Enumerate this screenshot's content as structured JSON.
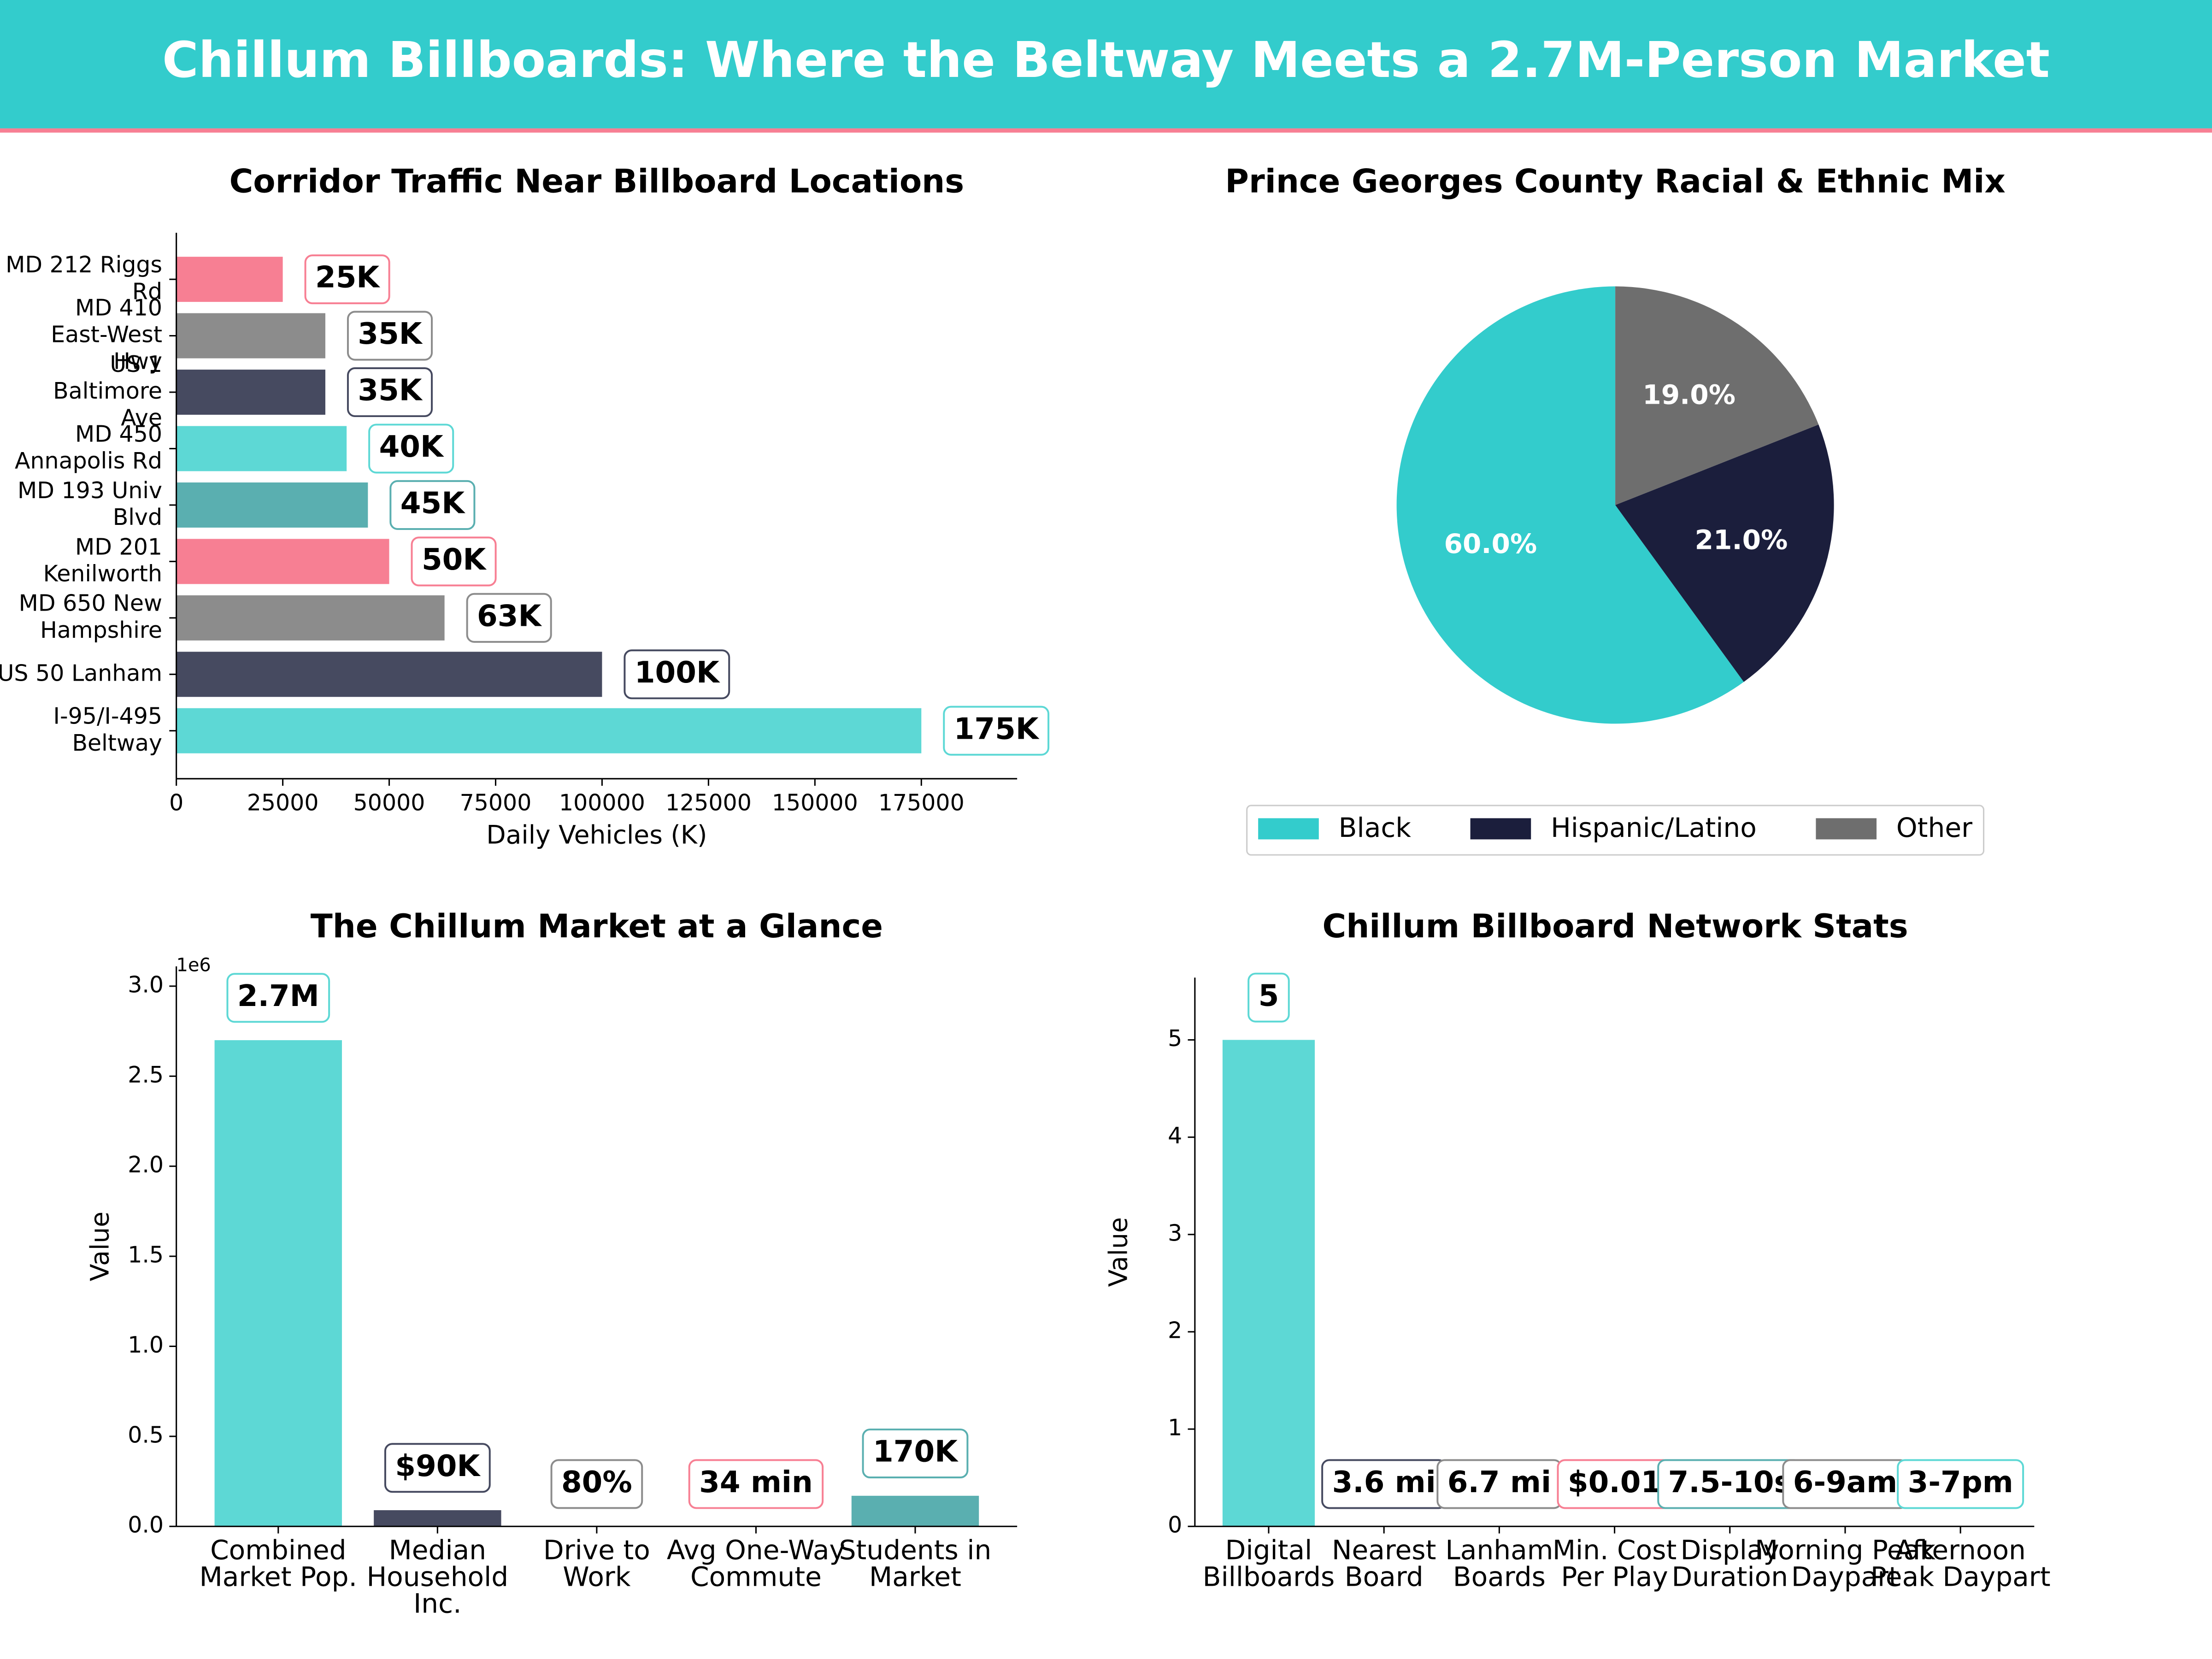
{
  "title": "Chillum Billboards: Where the Beltway Meets a 2.7M-Person Market",
  "chart_data": [
    {
      "type": "barh",
      "title": "Corridor Traffic Near Billboard Locations",
      "categories": [
        "I-95/I-495 Beltway",
        "US 50 Lanham",
        "MD 650 New Hampshire",
        "MD 201 Kenilworth",
        "MD 193 Univ Blvd",
        "MD 450 Annapolis Rd",
        "US 1 Baltimore Ave",
        "MD 410 East-West Hwy",
        "MD 212 Riggs Rd"
      ],
      "values": [
        175000,
        100000,
        63000,
        50000,
        45000,
        40000,
        35000,
        35000,
        25000
      ],
      "value_labels": [
        "175K",
        "100K",
        "63K",
        "50K",
        "45K",
        "40K",
        "35K",
        "35K",
        "25K"
      ],
      "colors": [
        "#5dd8d5",
        "#464a60",
        "#8c8c8c",
        "#f77f93",
        "#5aafb0",
        "#5dd8d5",
        "#464a60",
        "#8c8c8c",
        "#f77f93"
      ],
      "xlabel": "Daily Vehicles (K)",
      "xlim": [
        0,
        197500
      ],
      "xticks": [
        0,
        25000,
        50000,
        75000,
        100000,
        125000,
        150000,
        175000
      ]
    },
    {
      "type": "pie",
      "title": "Prince Georges County Racial & Ethnic Mix",
      "categories": [
        "Black",
        "Hispanic/Latino",
        "Other"
      ],
      "values": [
        60,
        21,
        19
      ],
      "value_labels": [
        "60.0%",
        "21.0%",
        "19.0%"
      ],
      "colors": [
        "#33cccc",
        "#1b1e3c",
        "#6e6e6e"
      ],
      "legend": "lower center"
    },
    {
      "type": "bar",
      "title": "The Chillum Market at a Glance",
      "categories": [
        "Combined Market Pop.",
        "Median Household Inc.",
        "Drive to Work",
        "Avg One-Way Commute",
        "Students in Market"
      ],
      "values": [
        2700000,
        90000,
        80,
        34,
        170000
      ],
      "value_labels": [
        "2.7M",
        "$90K",
        "80%",
        "34 min",
        "170K"
      ],
      "colors": [
        "#5dd8d5",
        "#464a60",
        "#8c8c8c",
        "#f77f93",
        "#5aafb0"
      ],
      "ylabel": "Value",
      "y_offset_label": "1e6",
      "ylim": [
        0,
        3110000
      ],
      "yticks": [
        {
          "value": 0,
          "label": "0.0"
        },
        {
          "value": 500000,
          "label": "0.5"
        },
        {
          "value": 1000000,
          "label": "1.0"
        },
        {
          "value": 1500000,
          "label": "1.5"
        },
        {
          "value": 2000000,
          "label": "2.0"
        },
        {
          "value": 2500000,
          "label": "2.5"
        },
        {
          "value": 3000000,
          "label": "3.0"
        }
      ]
    },
    {
      "type": "bar",
      "title": "Chillum Billboard Network Stats",
      "categories": [
        "Digital Billboards",
        "Nearest Board",
        "Lanham Boards",
        "Min. Cost Per Play",
        "Display Duration",
        "Morning Peak Daypart",
        "Afternoon Peak Daypart"
      ],
      "values": [
        5,
        null,
        null,
        null,
        null,
        null,
        null
      ],
      "value_labels": [
        "5",
        "3.6 mi",
        "6.7 mi",
        "$0.01",
        "7.5-10s",
        "6-9am",
        "3-7pm"
      ],
      "colors": [
        "#5dd8d5",
        "#464a60",
        "#8c8c8c",
        "#f77f93",
        "#5aafb0",
        "#8c8c8c",
        "#5dd8d5"
      ],
      "ylabel": "Value",
      "ylim": [
        0,
        5.64
      ],
      "yticks": [
        0,
        1,
        2,
        3,
        4,
        5
      ]
    }
  ]
}
